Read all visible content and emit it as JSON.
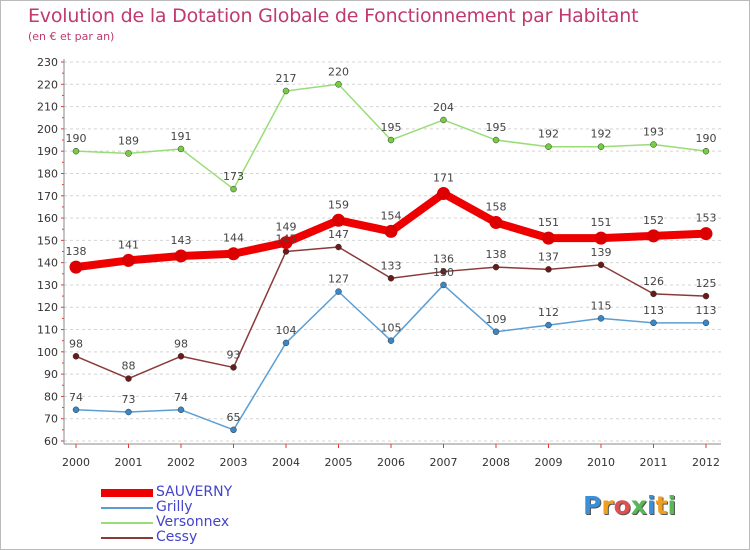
{
  "title": "Evolution de la Dotation Globale de Fonctionnement par Habitant",
  "subtitle": "(en € et par an)",
  "logo": {
    "text": "Proxiti",
    "letters": [
      "P",
      "r",
      "o",
      "x",
      "i",
      "t",
      "i"
    ],
    "colors": [
      "#3a8fd6",
      "#f0a020",
      "#e05050",
      "#58b858",
      "#3a8fd6",
      "#f0a020",
      "#58b858"
    ]
  },
  "chart_data": {
    "type": "line",
    "title": "Evolution de la Dotation Globale de Fonctionnement par Habitant",
    "subtitle": "(en € et par an)",
    "xlabel": "",
    "ylabel": "",
    "ylim": [
      60,
      230
    ],
    "ytick_step": 10,
    "grid": "horizontal dashed",
    "legend_position": "bottom-left",
    "categories": [
      "2000",
      "2001",
      "2002",
      "2003",
      "2004",
      "2005",
      "2006",
      "2007",
      "2008",
      "2009",
      "2010",
      "2011",
      "2012"
    ],
    "series": [
      {
        "name": "SAUVERNY",
        "color": "#ee0000",
        "point_color": "#dd0000",
        "width": 8,
        "values": [
          138,
          141,
          143,
          144,
          149,
          159,
          154,
          171,
          158,
          151,
          151,
          152,
          153
        ]
      },
      {
        "name": "Grilly",
        "color": "#5b9ed4",
        "point_color": "#3a87c7",
        "width": 1.5,
        "values": [
          74,
          73,
          74,
          65,
          104,
          127,
          105,
          130,
          109,
          112,
          115,
          113,
          113
        ]
      },
      {
        "name": "Versonnex",
        "color": "#99dd77",
        "point_color": "#77cc44",
        "width": 1.5,
        "values": [
          190,
          189,
          191,
          173,
          217,
          220,
          195,
          204,
          195,
          192,
          192,
          193,
          190
        ]
      },
      {
        "name": "Cessy",
        "color": "#8b3a3a",
        "point_color": "#6b1a1a",
        "width": 1.5,
        "values": [
          98,
          88,
          98,
          93,
          145,
          147,
          133,
          136,
          138,
          137,
          139,
          126,
          125
        ]
      }
    ],
    "value_labels": [
      {
        "series": "Versonnex",
        "labels": [
          "190",
          "189",
          "191",
          "173",
          "217",
          "220",
          "195",
          "204",
          "195",
          "192",
          "192",
          "193",
          "190"
        ]
      },
      {
        "series": "SAUVERNY",
        "labels": [
          "138",
          "141",
          "143",
          "144",
          "149",
          "159",
          "154",
          "171",
          "158",
          "151",
          "151",
          "152",
          "153"
        ]
      },
      {
        "series": "Cessy",
        "labels": [
          "98",
          "88",
          "98",
          "93",
          "145",
          "147",
          "133",
          "136",
          "138",
          "137",
          "139",
          "126",
          "125"
        ]
      },
      {
        "series": "Grilly",
        "labels": [
          "74",
          "73",
          "74",
          "65",
          "104",
          "127",
          "105",
          "130",
          "109",
          "112",
          "115",
          "113",
          "113"
        ]
      }
    ]
  }
}
